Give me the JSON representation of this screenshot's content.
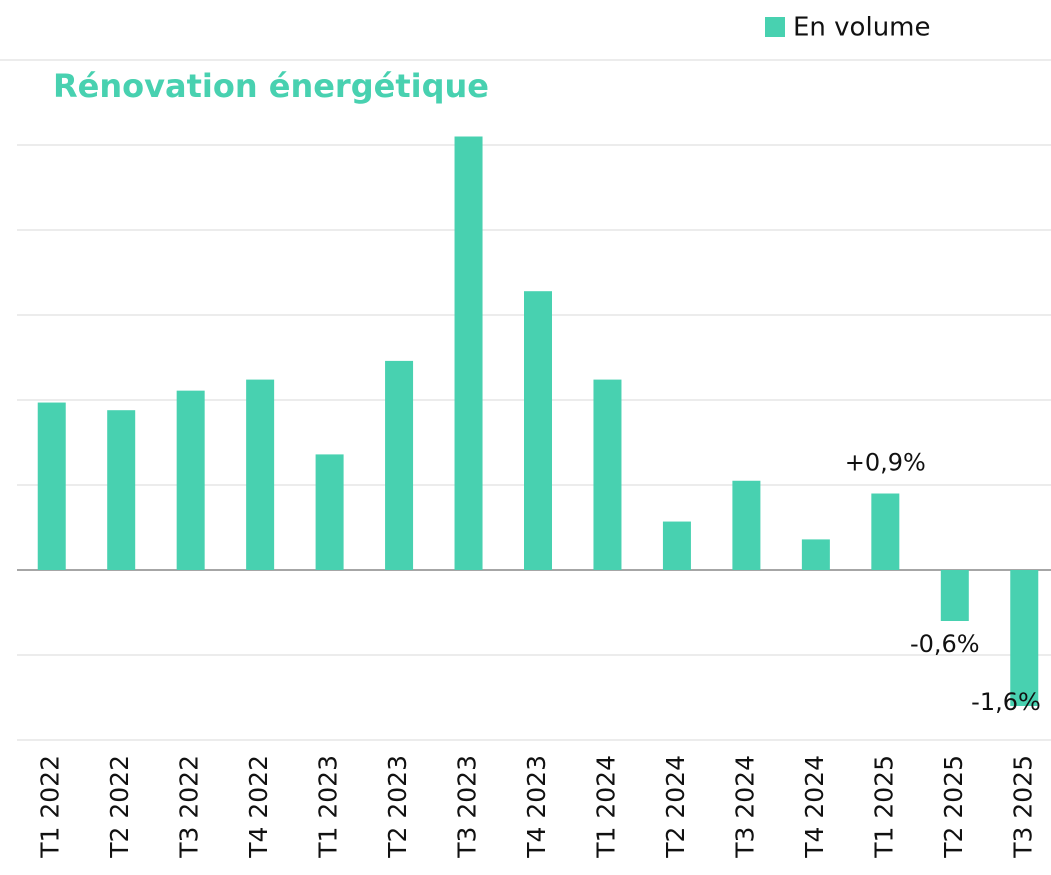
{
  "chart_data": {
    "type": "bar",
    "title": "Rénovation énergétique",
    "categories": [
      "T1 2022",
      "T2 2022",
      "T3 2022",
      "T4 2022",
      "T1 2023",
      "T2 2023",
      "T3 2023",
      "T4 2023",
      "T1 2024",
      "T2 2024",
      "T3 2024",
      "T4 2024",
      "T1 2025",
      "T2 2025",
      "T3 2025"
    ],
    "series": [
      {
        "name": "En volume",
        "color": "#48d1b0",
        "values": [
          1.97,
          1.88,
          2.11,
          2.24,
          1.36,
          2.46,
          5.1,
          3.28,
          2.24,
          0.57,
          1.05,
          0.36,
          0.9,
          -0.6,
          -1.6
        ],
        "value_labels": [
          null,
          null,
          null,
          null,
          null,
          null,
          null,
          null,
          null,
          null,
          null,
          null,
          "+0,9%",
          "-0,6%",
          "-1,6%"
        ]
      }
    ],
    "ylim": [
      -2,
      6
    ],
    "yticks": [
      -2,
      -1,
      0,
      1,
      2,
      3,
      4,
      5,
      6
    ],
    "grid": true,
    "legend": "top-right"
  }
}
